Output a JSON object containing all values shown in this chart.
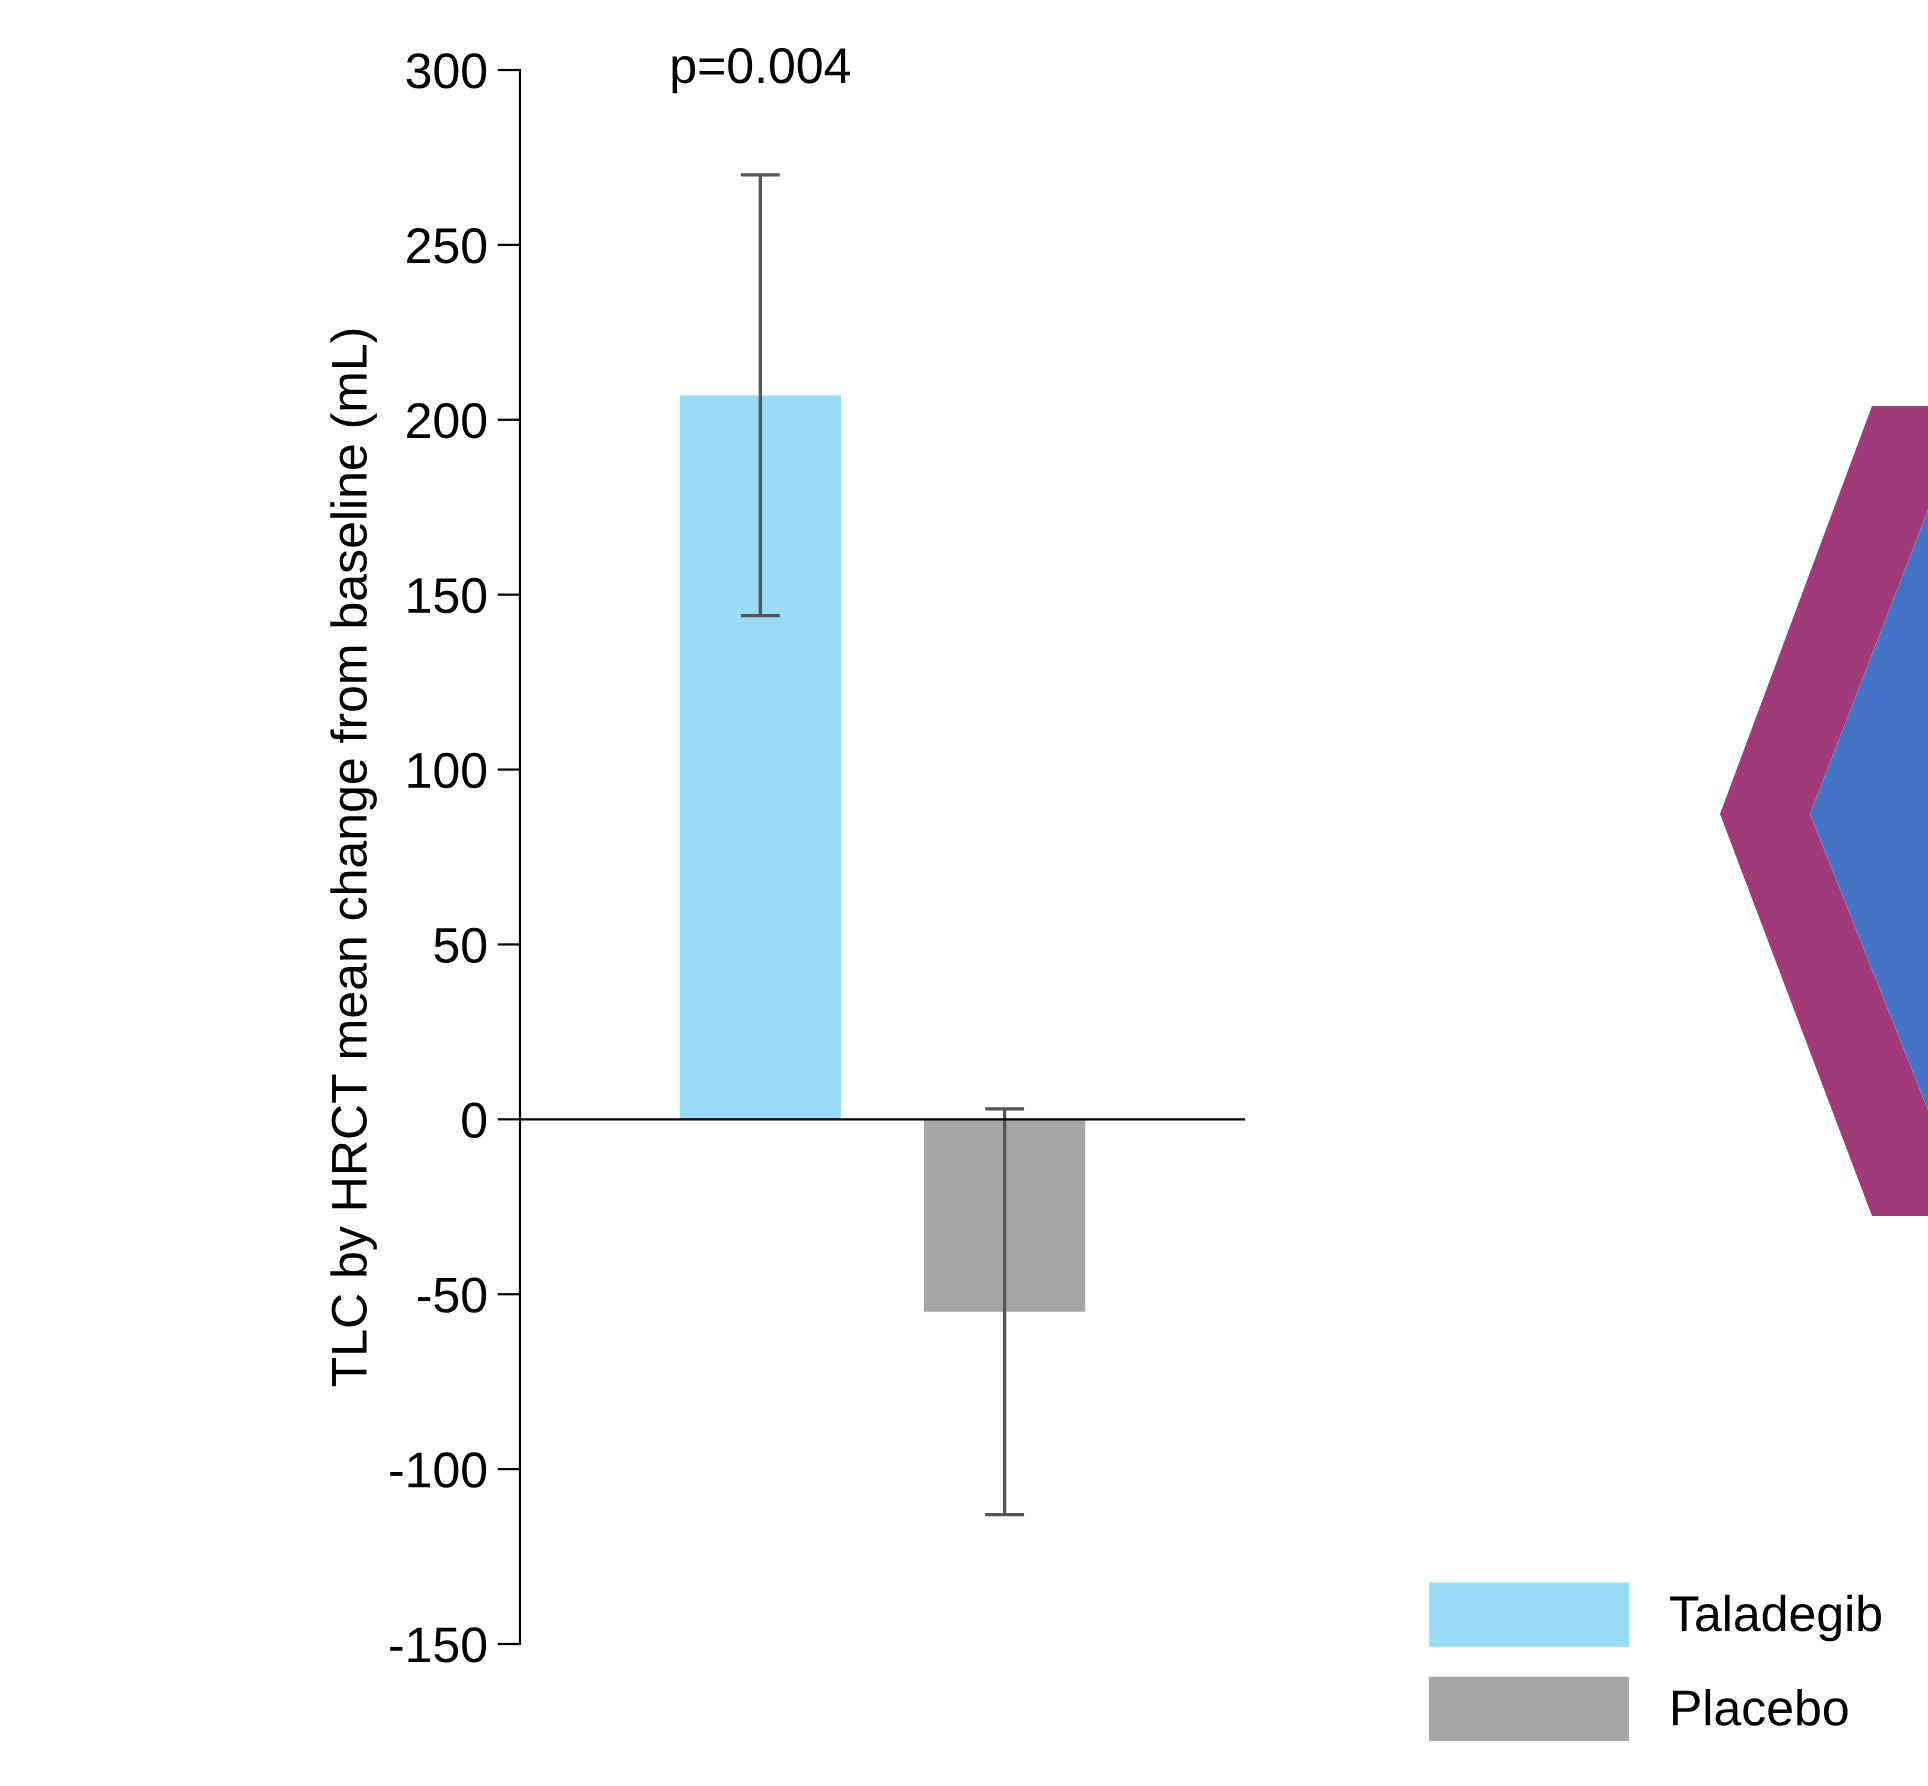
{
  "chart_data": {
    "type": "bar",
    "ylabel": "TLC by HRCT mean change from baseline (mL)",
    "categories": [
      null,
      null
    ],
    "series": [
      {
        "name": "Taladegib",
        "color": "#98dcf6",
        "values": [
          207,
          null
        ],
        "errors": [
          63,
          null
        ]
      },
      {
        "name": "Placebo",
        "color": "#a6a6a6",
        "values": [
          null,
          -55
        ],
        "errors": [
          null,
          58
        ]
      }
    ],
    "ylim": [
      -150,
      300
    ],
    "yticks": [
      -150,
      -100,
      -50,
      0,
      50,
      100,
      150,
      200,
      250,
      300
    ],
    "annotations": [
      "p=0.004"
    ],
    "legend": "bottom right",
    "tick_labels": "y"
  }
}
